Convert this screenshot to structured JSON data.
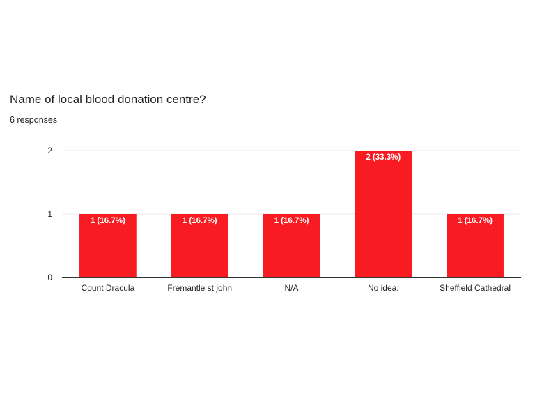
{
  "question": {
    "title": "Name of local blood donation centre?",
    "responses": "6 responses"
  },
  "chart_data": {
    "type": "bar",
    "title": "Name of local blood donation centre?",
    "xlabel": "",
    "ylabel": "",
    "categories": [
      "Count Dracula",
      "Fremantle st john",
      "N/A",
      "No idea.",
      "Sheffield Cathedral"
    ],
    "values": [
      1,
      1,
      1,
      2,
      1
    ],
    "data_labels": [
      "1 (16.7%)",
      "1 (16.7%)",
      "1 (16.7%)",
      "2 (33.3%)",
      "1 (16.7%)"
    ],
    "y_ticks": [
      "0",
      "1",
      "2"
    ],
    "ylim": [
      0,
      2
    ],
    "grid": true,
    "legend": "none",
    "bar_color": "#f81b22"
  }
}
